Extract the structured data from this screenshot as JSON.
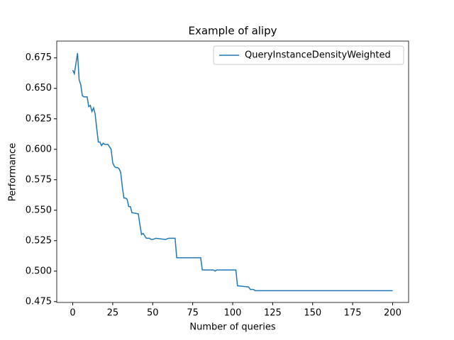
{
  "chart_data": {
    "type": "line",
    "title": "Example of alipy",
    "x_label": "Number of queries",
    "y_label": "Performance",
    "xlim": [
      -10,
      210
    ],
    "ylim": [
      0.4743,
      0.6888
    ],
    "xticks": [
      0,
      25,
      50,
      75,
      100,
      125,
      150,
      175,
      200
    ],
    "yticks": [
      0.475,
      {
        "value": 0.5,
        "label": "0.500"
      },
      0.525,
      {
        "value": 0.55,
        "label": "0.550"
      },
      0.575,
      {
        "value": 0.6,
        "label": "0.600"
      },
      0.625,
      {
        "value": 0.65,
        "label": "0.650"
      },
      0.675
    ],
    "legend": "upper right",
    "series": [
      {
        "name": "QueryInstanceDensityWeighted",
        "color": "#1f77b4",
        "x": [
          0,
          1,
          3,
          4,
          5,
          6,
          7,
          9,
          10,
          11,
          12,
          13,
          14,
          15,
          16,
          17,
          18,
          19,
          20,
          22,
          23,
          24,
          25,
          26,
          27,
          28,
          29,
          30,
          31,
          32,
          33,
          34,
          35,
          36,
          37,
          41,
          42,
          43,
          44,
          45,
          46,
          48,
          49,
          50,
          52,
          58,
          60,
          64,
          65,
          80,
          81,
          88,
          89,
          90,
          102,
          103,
          110,
          111,
          113,
          114,
          200
        ],
        "values": [
          0.665,
          0.662,
          0.679,
          0.657,
          0.653,
          0.644,
          0.643,
          0.643,
          0.635,
          0.636,
          0.631,
          0.634,
          0.629,
          0.617,
          0.606,
          0.606,
          0.603,
          0.605,
          0.604,
          0.604,
          0.602,
          0.6,
          0.589,
          0.586,
          0.585,
          0.585,
          0.584,
          0.581,
          0.569,
          0.56,
          0.56,
          0.559,
          0.553,
          0.553,
          0.548,
          0.547,
          0.538,
          0.53,
          0.531,
          0.529,
          0.527,
          0.527,
          0.526,
          0.526,
          0.527,
          0.526,
          0.527,
          0.527,
          0.511,
          0.511,
          0.501,
          0.501,
          0.5,
          0.501,
          0.501,
          0.488,
          0.487,
          0.485,
          0.485,
          0.484,
          0.484
        ]
      }
    ]
  }
}
